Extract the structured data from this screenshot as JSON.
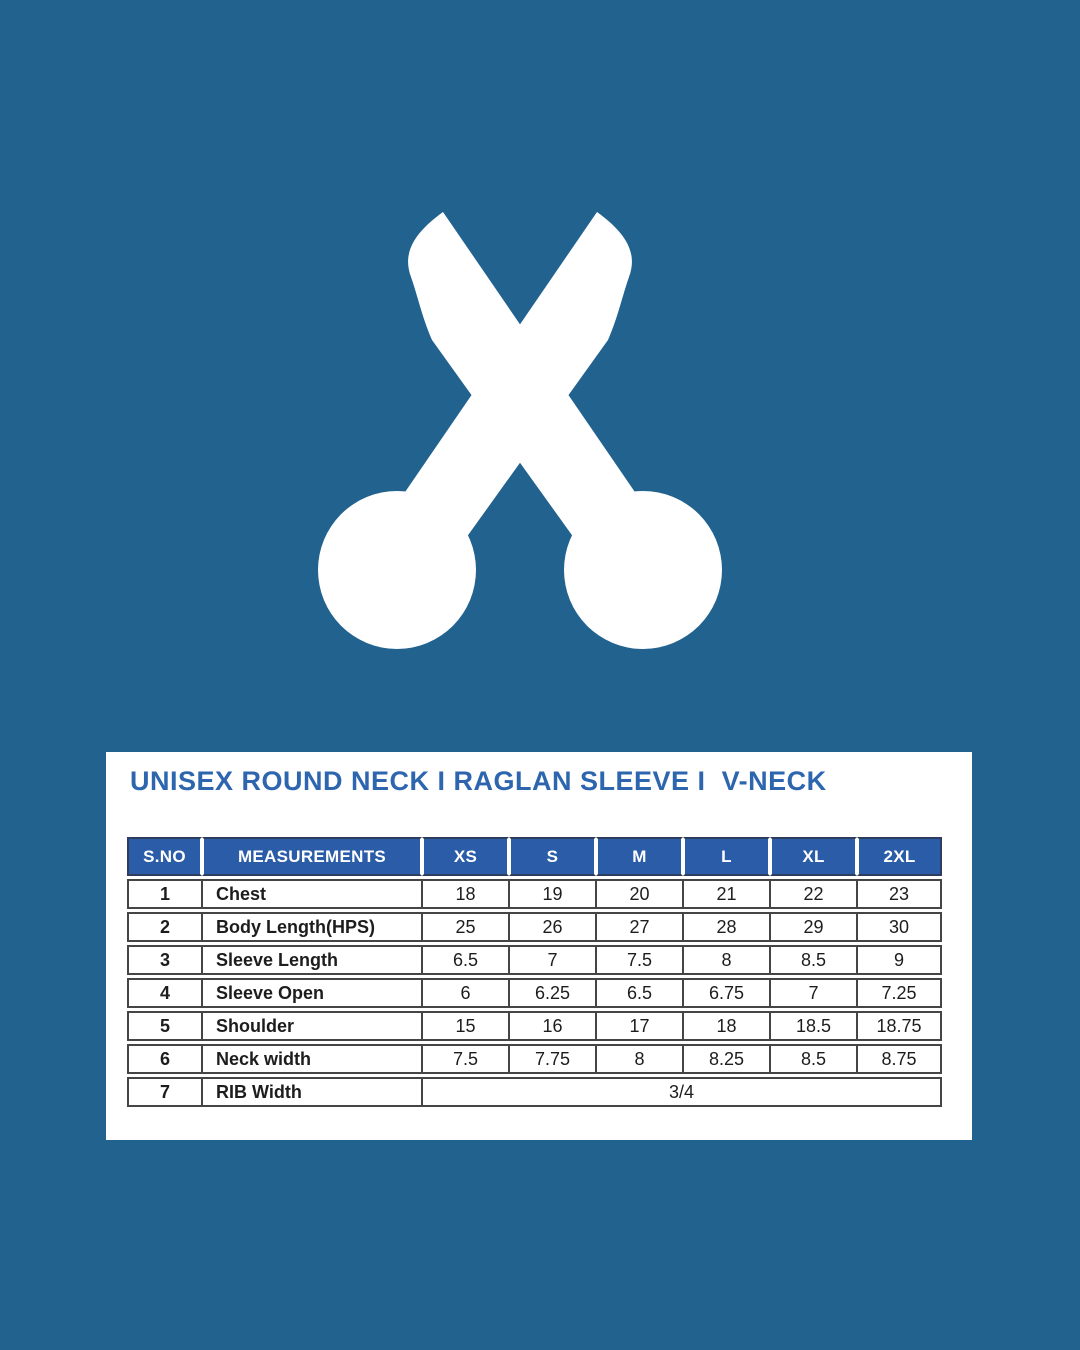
{
  "colors": {
    "background": "#21628F",
    "panel_bg": "#ffffff",
    "title_text": "#2d66af",
    "header_bg": "#2b5ca7",
    "header_text": "#ffffff",
    "header_border": "#2e3c5e",
    "cell_text": "#1d1d1d",
    "cell_border": "#454545",
    "icon_color": "#ffffff"
  },
  "icon": {
    "name": "scissors-icon"
  },
  "size_chart": {
    "title": "UNISEX ROUND NECK I RAGLAN SLEEVE I  V-NECK",
    "columns": [
      "S.NO",
      "MEASUREMENTS",
      "XS",
      "S",
      "M",
      "L",
      "XL",
      "2XL"
    ],
    "rows": [
      {
        "sno": "1",
        "label": "Chest",
        "values": [
          "18",
          "19",
          "20",
          "21",
          "22",
          "23"
        ]
      },
      {
        "sno": "2",
        "label": "Body Length(HPS)",
        "values": [
          "25",
          "26",
          "27",
          "28",
          "29",
          "30"
        ]
      },
      {
        "sno": "3",
        "label": "Sleeve Length",
        "values": [
          "6.5",
          "7",
          "7.5",
          "8",
          "8.5",
          "9"
        ]
      },
      {
        "sno": "4",
        "label": "Sleeve Open",
        "values": [
          "6",
          "6.25",
          "6.5",
          "6.75",
          "7",
          "7.25"
        ]
      },
      {
        "sno": "5",
        "label": "Shoulder",
        "values": [
          "15",
          "16",
          "17",
          "18",
          "18.5",
          "18.75"
        ]
      },
      {
        "sno": "6",
        "label": "Neck width",
        "values": [
          "7.5",
          "7.75",
          "8",
          "8.25",
          "8.5",
          "8.75"
        ]
      },
      {
        "sno": "7",
        "label": "RIB Width",
        "merged_value": "3/4"
      }
    ]
  }
}
